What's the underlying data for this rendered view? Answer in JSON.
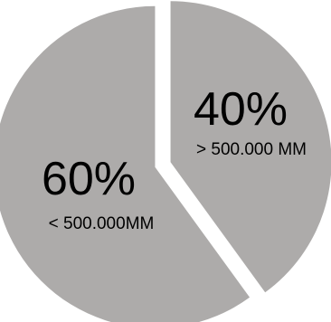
{
  "chart_data": {
    "type": "pie",
    "title": "",
    "slices": [
      {
        "label": "> 500.000 MM",
        "value": 40,
        "value_label": "40%",
        "color": "#adabaa"
      },
      {
        "label": "< 500.000MM",
        "value": 60,
        "value_label": "60%",
        "color": "#adabaa"
      }
    ],
    "exploded": true,
    "legend": "none"
  }
}
